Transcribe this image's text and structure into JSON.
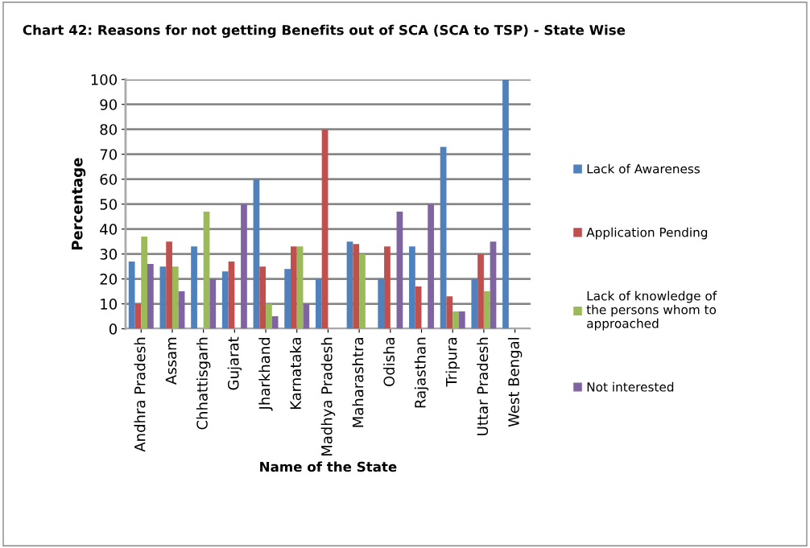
{
  "chart_data": {
    "type": "bar",
    "title": "Chart 42: Reasons for not getting Benefits out of SCA (SCA to TSP) - State Wise",
    "xlabel": "Name of the State",
    "ylabel": "Percentage",
    "categories": [
      "Andhra Pradesh",
      "Assam",
      "Chhattisgarh",
      "Gujarat",
      "Jharkhand",
      "Karnataka",
      "Madhya Pradesh",
      "Maharashtra",
      "Odisha",
      "Rajasthan",
      "Tripura",
      "Uttar Pradesh",
      "West Bengal"
    ],
    "series": [
      {
        "name": "Lack of Awareness",
        "color": "#4f81bd",
        "values": [
          27,
          25,
          33,
          23,
          60,
          24,
          20,
          35,
          20,
          33,
          73,
          20,
          100
        ]
      },
      {
        "name": "Application Pending",
        "color": "#c0504d",
        "values": [
          10,
          35,
          0,
          27,
          25,
          33,
          80,
          34,
          33,
          17,
          13,
          30,
          0
        ]
      },
      {
        "name": "Lack of knowledge of the persons whom to approached",
        "color": "#9bbb59",
        "values": [
          37,
          25,
          47,
          0,
          10,
          33,
          0,
          30,
          0,
          0,
          7,
          15,
          0
        ]
      },
      {
        "name": "Not interested",
        "color": "#8064a2",
        "values": [
          26,
          15,
          20,
          50,
          5,
          10,
          0,
          0,
          47,
          50,
          7,
          35,
          0
        ]
      }
    ],
    "ylim": [
      0,
      100
    ],
    "yticks": [
      0,
      10,
      20,
      30,
      40,
      50,
      60,
      70,
      80,
      90,
      100
    ],
    "grid": "y",
    "legend": "right"
  }
}
